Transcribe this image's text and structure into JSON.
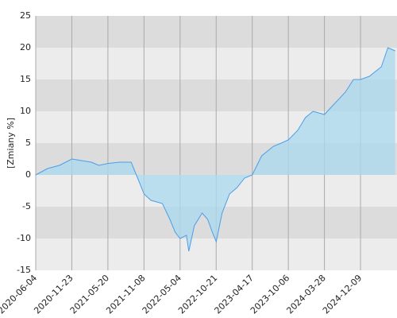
{
  "chart_data": {
    "type": "area",
    "y_label": "[Zmiany %]",
    "x": [
      "2020-06-04",
      "2020-07-30",
      "2020-09-25",
      "2020-11-23",
      "2021-01-01",
      "2021-02-27",
      "2021-04-05",
      "2021-05-20",
      "2021-07-13",
      "2021-09-08",
      "2021-10-15",
      "2021-11-08",
      "2021-12-12",
      "2022-02-06",
      "2022-03-15",
      "2022-04-10",
      "2022-05-04",
      "2022-06-03",
      "2022-06-14",
      "2022-07-10",
      "2022-08-16",
      "2022-09-11",
      "2022-10-03",
      "2022-10-21",
      "2022-11-19",
      "2022-12-26",
      "2023-02-01",
      "2023-03-10",
      "2023-04-17",
      "2023-06-01",
      "2023-07-27",
      "2023-09-02",
      "2023-10-06",
      "2023-11-20",
      "2023-12-27",
      "2024-02-02",
      "2024-03-28",
      "2024-05-30",
      "2024-08-23",
      "2024-10-20",
      "2024-12-09",
      "2025-02-10",
      "2025-05-06",
      "2025-06-21",
      "2025-08-12"
    ],
    "values": [
      0,
      1,
      1.5,
      2.5,
      2.3,
      2,
      1.5,
      1.8,
      2,
      2,
      -1,
      -3,
      -4,
      -4.5,
      -7,
      -9,
      -10,
      -9.5,
      -12,
      -8,
      -6,
      -7,
      -9,
      -10.5,
      -6,
      -3,
      -2,
      -0.5,
      0,
      3,
      4.5,
      5,
      5.5,
      7,
      9,
      10,
      9.5,
      11,
      13,
      15,
      15,
      15.5,
      17,
      20,
      19.5
    ],
    "color": "#4a9ee8",
    "fill": "#a9d9ee",
    "band_colors": [
      "#dcdcdc",
      "#ececec"
    ],
    "ylim": [
      -15,
      25
    ],
    "yticks": [
      -15,
      -10,
      -5,
      0,
      5,
      10,
      15,
      20,
      25
    ],
    "xticks": [
      "2020-06-04",
      "2020-11-23",
      "2021-05-20",
      "2021-11-08",
      "2022-05-04",
      "2022-10-21",
      "2023-04-17",
      "2023-10-06",
      "2024-03-28",
      "2024-12-09"
    ],
    "grid": true
  }
}
